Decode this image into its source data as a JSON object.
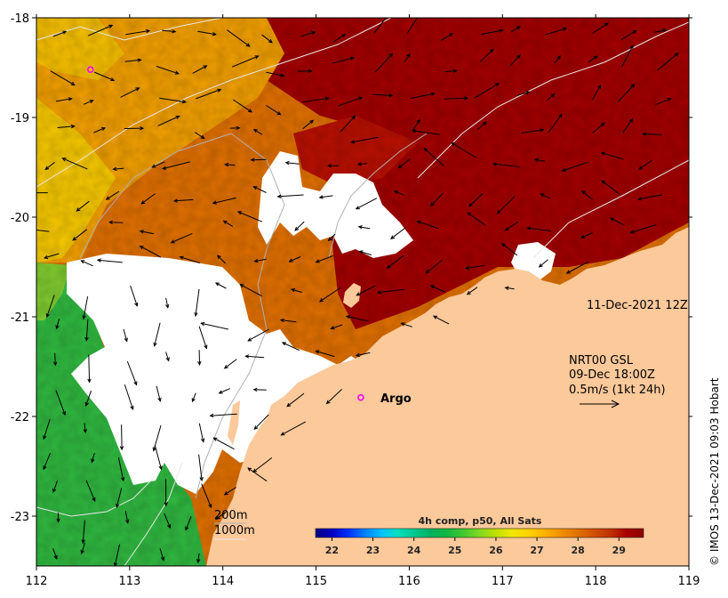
{
  "map": {
    "lon_ticks": [
      "112",
      "113",
      "114",
      "115",
      "116",
      "117",
      "118",
      "119"
    ],
    "lat_ticks": [
      "-18",
      "-19",
      "-20",
      "-21",
      "-22",
      "-23"
    ],
    "lon_range": [
      112,
      119
    ],
    "lat_range": [
      -23.5,
      -18
    ],
    "land_color": "#fcc99b",
    "no_data_color": "#ffffff",
    "date_label": "11-Dec-2021 12Z",
    "current_product": {
      "name": "NRT00 GSL",
      "time": "09-Dec 18:00Z",
      "scale": "0.5m/s (1kt 24h)"
    },
    "argo_label": "Argo",
    "argo_floats": [
      {
        "lon": 112.58,
        "lat": -18.52,
        "labeled": false
      },
      {
        "lon": 115.48,
        "lat": -21.81,
        "labeled": true
      }
    ],
    "isobaths": {
      "shallow": "200m",
      "deep": "1000m"
    },
    "credit": "© IMOS 13-Dec-2021 09:03 Hobart"
  },
  "colorbar": {
    "title": "4h comp, p50, All Sats",
    "ticks": [
      "22",
      "23",
      "24",
      "25",
      "26",
      "27",
      "28",
      "29"
    ],
    "range": [
      21.6,
      29.6
    ],
    "colors": [
      "#00007f",
      "#0000c0",
      "#0030ff",
      "#0080ff",
      "#00c0ff",
      "#00e0c0",
      "#00c890",
      "#00b060",
      "#10b840",
      "#40c830",
      "#80d820",
      "#c0e000",
      "#f0e800",
      "#ffd000",
      "#ffb000",
      "#f09000",
      "#e07000",
      "#d05000",
      "#c03000",
      "#a80000",
      "#8a0000"
    ]
  }
}
